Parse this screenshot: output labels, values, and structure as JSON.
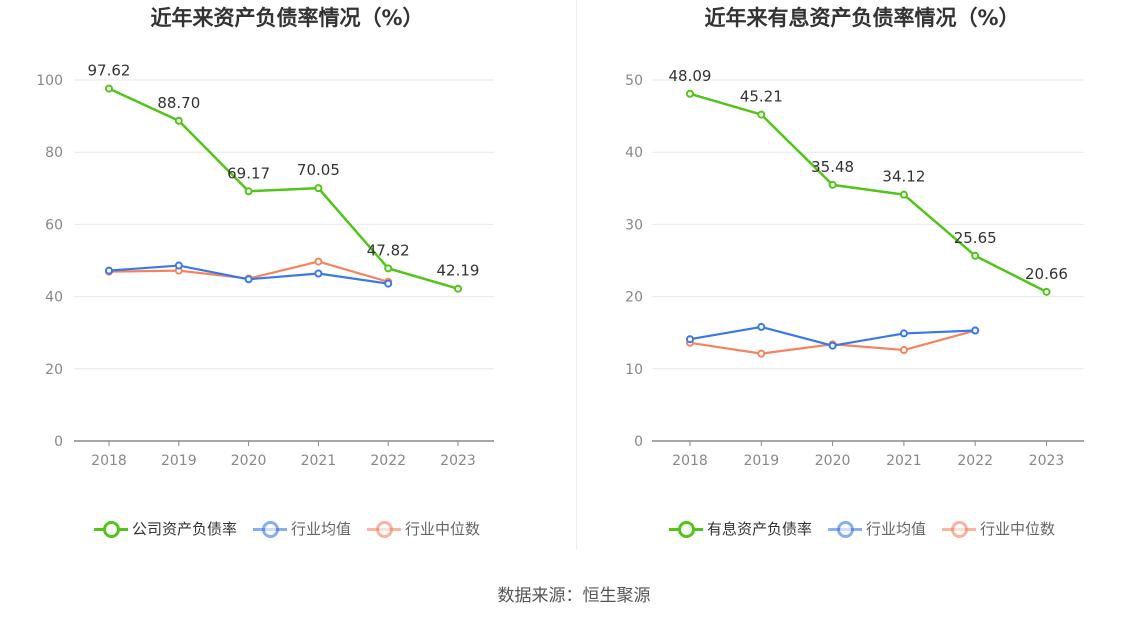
{
  "chart_data": [
    {
      "type": "line",
      "title": "近年来资产负债率情况（%）",
      "categories": [
        "2018",
        "2019",
        "2020",
        "2021",
        "2022",
        "2023"
      ],
      "ylim": [
        0,
        100
      ],
      "yticks": [
        0,
        20,
        40,
        60,
        80,
        100
      ],
      "grid": true,
      "legend_position": "bottom",
      "series": [
        {
          "name": "公司资产负债率",
          "color": "#52c41a",
          "values": [
            97.62,
            88.7,
            69.17,
            70.05,
            47.82,
            42.19
          ],
          "labels": [
            "97.62",
            "88.70",
            "69.17",
            "70.05",
            "47.82",
            "42.19"
          ]
        },
        {
          "name": "行业均值",
          "color": "#3a78e7",
          "values": [
            47.2,
            48.6,
            44.8,
            46.4,
            43.6,
            null
          ]
        },
        {
          "name": "行业中位数",
          "color": "#f4845f",
          "values": [
            46.9,
            47.2,
            45.0,
            49.7,
            44.1,
            null
          ]
        }
      ]
    },
    {
      "type": "line",
      "title": "近年来有息资产负债率情况（%）",
      "categories": [
        "2018",
        "2019",
        "2020",
        "2021",
        "2022",
        "2023"
      ],
      "ylim": [
        0,
        50
      ],
      "yticks": [
        0,
        10,
        20,
        30,
        40,
        50
      ],
      "grid": true,
      "legend_position": "bottom",
      "series": [
        {
          "name": "有息资产负债率",
          "color": "#52c41a",
          "values": [
            48.09,
            45.21,
            35.48,
            34.12,
            25.65,
            20.66
          ],
          "labels": [
            "48.09",
            "45.21",
            "35.48",
            "34.12",
            "25.65",
            "20.66"
          ]
        },
        {
          "name": "行业均值",
          "color": "#3a78e7",
          "values": [
            14.1,
            15.8,
            13.2,
            14.9,
            15.3,
            null
          ]
        },
        {
          "name": "行业中位数",
          "color": "#f4845f",
          "values": [
            13.6,
            12.1,
            13.4,
            12.6,
            15.3,
            null
          ]
        }
      ]
    }
  ],
  "legend_text_colors": {
    "primary": "#333333",
    "secondary": "#666666"
  },
  "source": "数据来源：恒生聚源"
}
